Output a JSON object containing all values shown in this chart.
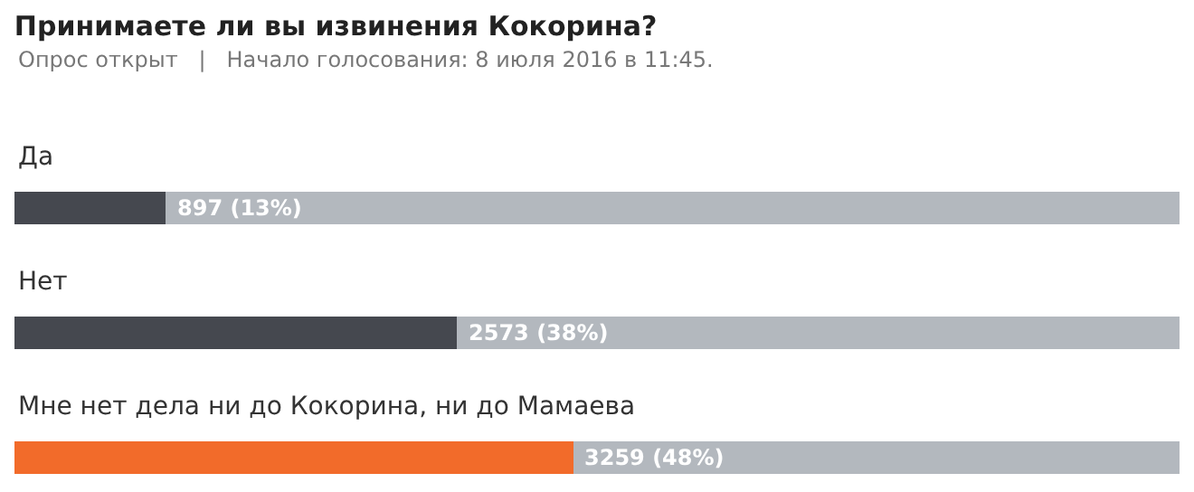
{
  "chart_data": {
    "type": "bar",
    "orientation": "horizontal",
    "stacked": true,
    "title": "Принимаете ли вы извинения Кокорина?",
    "subtitle": "Опрос открыт   |   Начало голосования: 8 июля 2016 в 11:45.",
    "categories": [
      "Да",
      "Нет",
      "Мне нет дела ни до Кокорина, ни до Мамаева"
    ],
    "series": [
      {
        "colors": [
          "#45484f",
          "#45484f",
          "#f26b2a"
        ],
        "values": [
          13,
          38,
          48
        ],
        "value_labels": [
          "897 (13%)",
          "2573 (38%)",
          "3259 (48%)"
        ]
      },
      {
        "color": "#b3b8be",
        "values": [
          87,
          62,
          52
        ]
      }
    ]
  }
}
